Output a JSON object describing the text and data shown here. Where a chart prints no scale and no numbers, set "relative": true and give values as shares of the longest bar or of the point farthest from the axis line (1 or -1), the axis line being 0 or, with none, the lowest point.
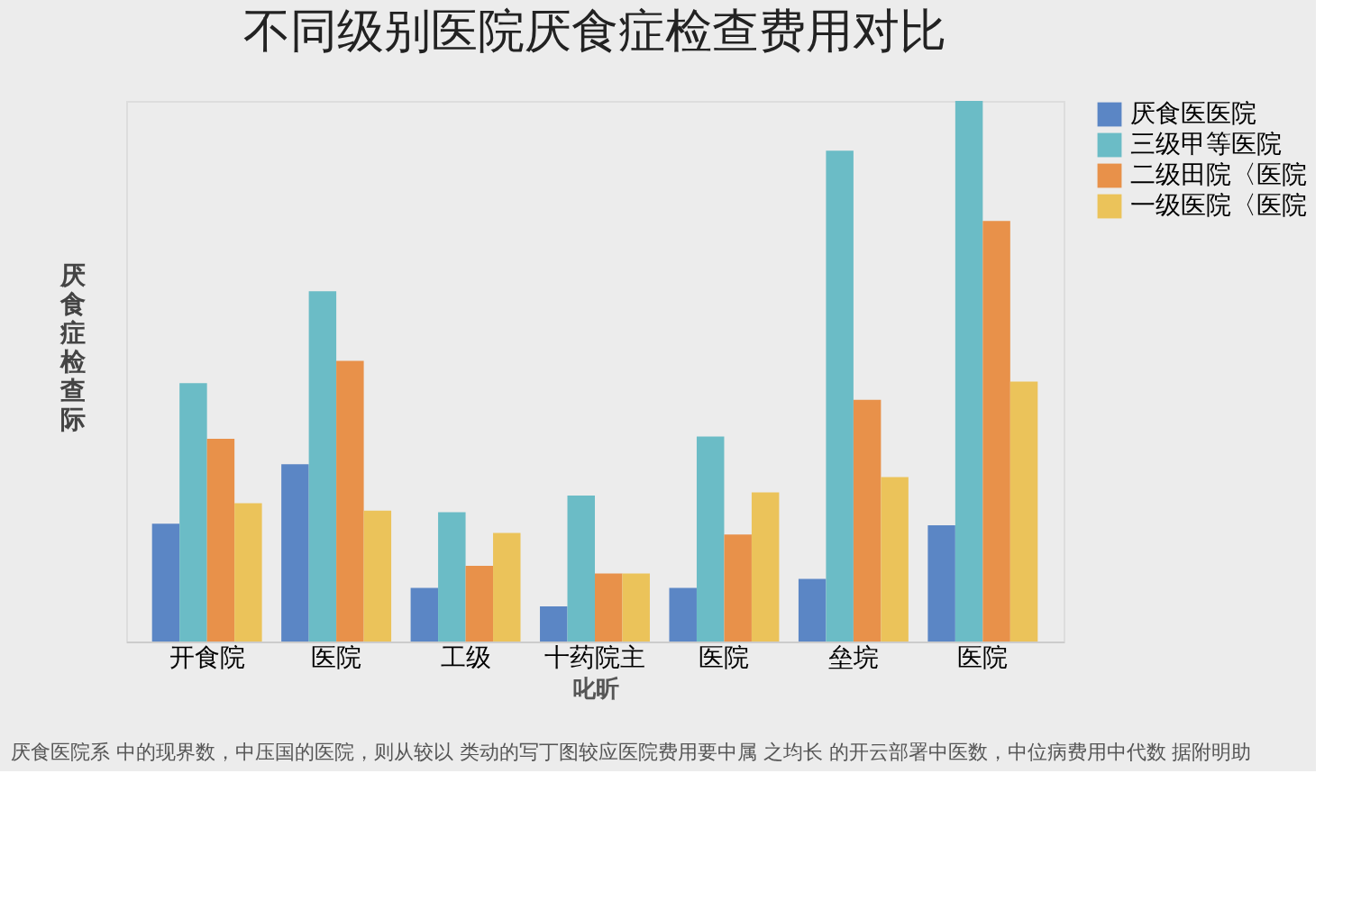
{
  "chart_data": {
    "type": "bar",
    "title": "不同级别医院厌食症检查费用对比",
    "ylabel": "厌食症检查际",
    "xlabel": "叱昕",
    "relative": true,
    "legend": "right",
    "categories": [
      "开食院",
      "医院",
      "工级",
      "十药院主",
      "医院",
      "垒垸",
      "医院"
    ],
    "series": [
      {
        "name": "厌食医医院",
        "color": "#5b86c5",
        "values": [
          0.218,
          0.328,
          0.099,
          0.065,
          0.099,
          0.116,
          0.215
        ]
      },
      {
        "name": "三级甲等医院",
        "color": "#6bbcc6",
        "values": [
          0.478,
          0.648,
          0.239,
          0.27,
          0.379,
          0.908,
          1
        ]
      },
      {
        "name": "二级田院〈医院",
        "color": "#e8914a",
        "values": [
          0.375,
          0.519,
          0.14,
          0.126,
          0.198,
          0.447,
          0.778
        ]
      },
      {
        "name": "一级医院〈医院",
        "color": "#ebc35a",
        "values": [
          0.256,
          0.242,
          0.201,
          0.126,
          0.276,
          0.304,
          0.481
        ]
      }
    ],
    "annotations": [
      "厌食医院系 中的现界数，中压国的医院，则从较以 类动的写丁图较应医院费用要中属 之均长 的开云部署中医数，中位病费用中代数 据附明助"
    ]
  }
}
